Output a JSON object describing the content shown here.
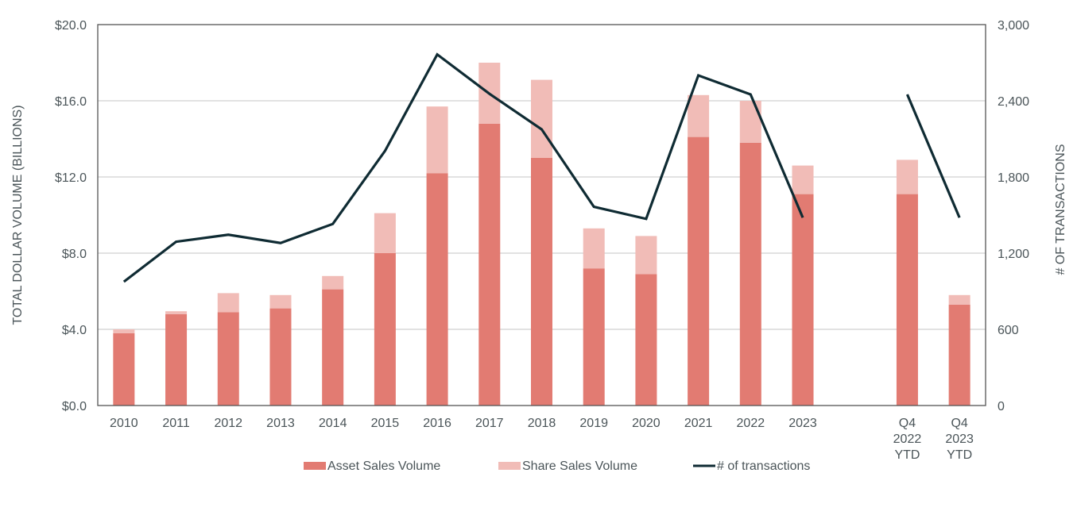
{
  "chart_data": {
    "type": "bar",
    "stacked": true,
    "categories": [
      "2010",
      "2011",
      "2012",
      "2013",
      "2014",
      "2015",
      "2016",
      "2017",
      "2018",
      "2019",
      "2020",
      "2021",
      "2022",
      "2023",
      "",
      "Q4 2022 YTD",
      "Q4 2023 YTD"
    ],
    "category_lines": [
      [
        "2010"
      ],
      [
        "2011"
      ],
      [
        "2012"
      ],
      [
        "2013"
      ],
      [
        "2014"
      ],
      [
        "2015"
      ],
      [
        "2016"
      ],
      [
        "2017"
      ],
      [
        "2018"
      ],
      [
        "2019"
      ],
      [
        "2020"
      ],
      [
        "2021"
      ],
      [
        "2022"
      ],
      [
        "2023"
      ],
      [],
      [
        "Q4",
        "2022",
        "YTD"
      ],
      [
        "Q4",
        "2023",
        "YTD"
      ]
    ],
    "series": [
      {
        "name": "Asset Sales Volume",
        "type": "bar",
        "axis": "left",
        "color": "#E27B72",
        "values": [
          3.8,
          4.8,
          4.9,
          5.1,
          6.1,
          8.0,
          12.2,
          14.8,
          13.0,
          7.2,
          6.9,
          14.1,
          13.8,
          11.1,
          null,
          11.1,
          5.3
        ]
      },
      {
        "name": "Share Sales Volume",
        "type": "bar",
        "axis": "left",
        "color": "#F1BCB7",
        "values": [
          0.2,
          0.15,
          1.0,
          0.7,
          0.7,
          2.1,
          3.5,
          3.2,
          4.1,
          2.1,
          2.0,
          2.2,
          2.2,
          1.5,
          null,
          1.8,
          0.5
        ]
      },
      {
        "name": "# of transactions",
        "type": "line",
        "axis": "right",
        "color": "#0F2B33",
        "values": [
          975,
          1290,
          1345,
          1280,
          1430,
          2005,
          2765,
          2455,
          2175,
          1565,
          1470,
          2600,
          2450,
          1480,
          null,
          2450,
          1480
        ]
      }
    ],
    "ylabel": "TOTAL DOLLAR VOLUME (BILLIONS)",
    "y2label": "# OF TRANSACTIONS",
    "ylim": [
      0,
      20
    ],
    "y2lim": [
      0,
      3000
    ],
    "yticks": [
      "$0.0",
      "$4.0",
      "$8.0",
      "$12.0",
      "$16.0",
      "$20.0"
    ],
    "y2ticks": [
      "0",
      "600",
      "1,200",
      "1,800",
      "2,400",
      "3,000"
    ],
    "grid": true,
    "legend_position": "bottom"
  }
}
